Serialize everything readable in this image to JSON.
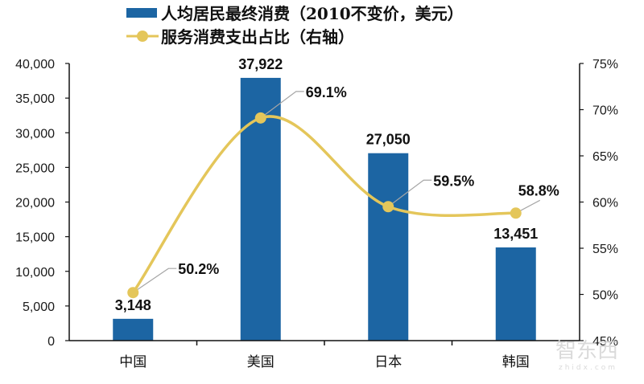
{
  "chart_data": {
    "type": "bar+line",
    "title": "",
    "categories": [
      "中国",
      "美国",
      "日本",
      "韩国"
    ],
    "series": [
      {
        "name": "人均居民最终消费（2010不变价，美元）",
        "type": "bar",
        "axis": "left",
        "color": "#1C65A3",
        "values": [
          3148,
          37922,
          27050,
          13451
        ],
        "labels": [
          "3,148",
          "37,922",
          "27,050",
          "13,451"
        ]
      },
      {
        "name": "服务消费支出占比（右轴）",
        "type": "line",
        "axis": "right",
        "smooth": true,
        "color": "#E4C65A",
        "values": [
          50.2,
          69.1,
          59.5,
          58.8
        ],
        "labels": [
          "50.2%",
          "69.1%",
          "59.5%",
          "58.8%"
        ]
      }
    ],
    "left_axis": {
      "ylim": [
        0,
        40000
      ],
      "ticks": [
        0,
        5000,
        10000,
        15000,
        20000,
        25000,
        30000,
        35000,
        40000
      ],
      "tick_labels": [
        "0",
        "5,000",
        "10,000",
        "15,000",
        "20,000",
        "25,000",
        "30,000",
        "35,000",
        "40,000"
      ]
    },
    "right_axis": {
      "ylim": [
        45,
        75
      ],
      "ticks": [
        45,
        50,
        55,
        60,
        65,
        70,
        75
      ],
      "tick_labels": [
        "45%",
        "50%",
        "55%",
        "60%",
        "65%",
        "70%",
        "75%"
      ]
    },
    "xlabel": "",
    "ylabel": "",
    "grid": false,
    "legend_position": "top"
  },
  "legend": {
    "bar_label": "人均居民最终消费（2010不变价，美元）",
    "line_label": "服务消费支出占比（右轴）"
  },
  "watermark": {
    "text": "智东西",
    "subtext": "zhidx.com"
  }
}
